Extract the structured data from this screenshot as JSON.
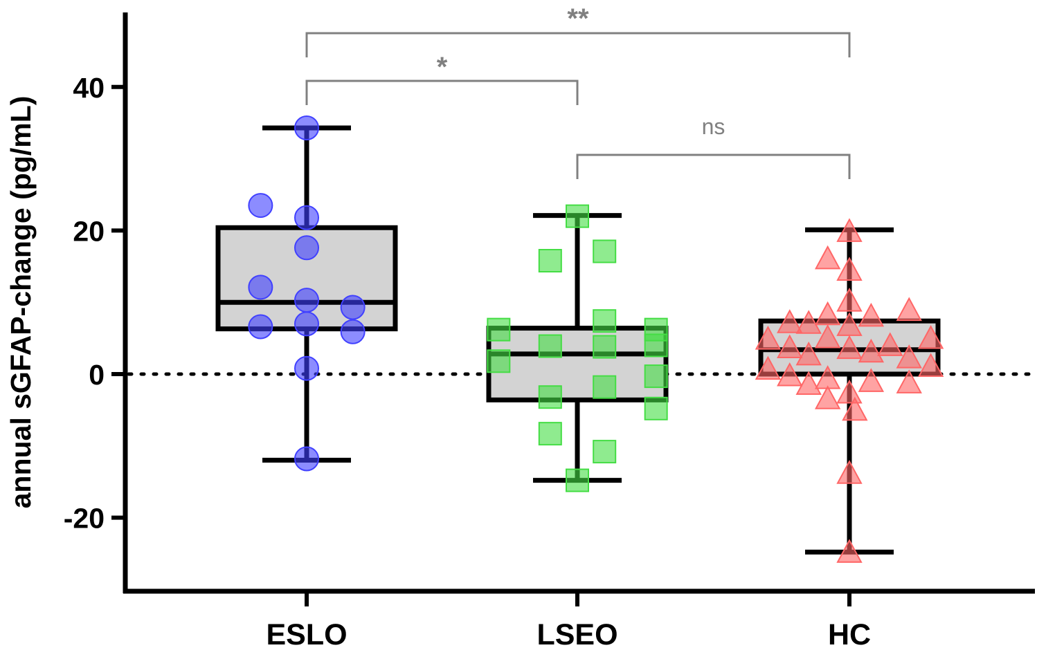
{
  "chart_data": {
    "type": "box",
    "ylabel": "annual sGFAP-change (pg/mL)",
    "xlabel": "",
    "ylim": [
      -30,
      50
    ],
    "yticks": [
      -20,
      0,
      20,
      40
    ],
    "ytick_labels": [
      "-20",
      "0",
      "20",
      "40"
    ],
    "categories": [
      "ESLO",
      "LSEO",
      "HC"
    ],
    "reference_line": 0,
    "groups": [
      {
        "name": "ESLO",
        "marker": "circle",
        "color": "#4040ff",
        "min": -12,
        "q1": 6.3,
        "median": 10,
        "q3": 20.4,
        "max": 34.3,
        "points": [
          {
            "x": 0,
            "y": 34.3
          },
          {
            "x": -0.17,
            "y": 23.5
          },
          {
            "x": 0,
            "y": 21.8
          },
          {
            "x": 0,
            "y": 17.6
          },
          {
            "x": -0.17,
            "y": 12.1
          },
          {
            "x": 0,
            "y": 10.3
          },
          {
            "x": 0.17,
            "y": 9.3
          },
          {
            "x": 0,
            "y": 7.0
          },
          {
            "x": -0.17,
            "y": 6.6
          },
          {
            "x": 0.17,
            "y": 5.9
          },
          {
            "x": 0,
            "y": 0.8
          },
          {
            "x": 0,
            "y": -11.8
          }
        ]
      },
      {
        "name": "LSEO",
        "marker": "square",
        "color": "#44dd44",
        "min": -14.8,
        "q1": -3.6,
        "median": 2.8,
        "q3": 6.4,
        "max": 22.1,
        "points": [
          {
            "x": 0,
            "y": 22.0
          },
          {
            "x": 0.1,
            "y": 17.1
          },
          {
            "x": -0.1,
            "y": 15.8
          },
          {
            "x": 0.1,
            "y": 7.4
          },
          {
            "x": -0.29,
            "y": 6.2
          },
          {
            "x": 0.29,
            "y": 6.2
          },
          {
            "x": 0.29,
            "y": 4.0
          },
          {
            "x": -0.1,
            "y": 3.9
          },
          {
            "x": 0.1,
            "y": 3.8
          },
          {
            "x": -0.29,
            "y": 1.8
          },
          {
            "x": 0.29,
            "y": -0.3
          },
          {
            "x": 0.1,
            "y": -1.8
          },
          {
            "x": -0.1,
            "y": -3.2
          },
          {
            "x": 0.29,
            "y": -4.8
          },
          {
            "x": -0.1,
            "y": -8.3
          },
          {
            "x": 0.1,
            "y": -10.8
          },
          {
            "x": 0,
            "y": -14.8
          }
        ]
      },
      {
        "name": "HC",
        "marker": "triangle",
        "color": "#ff6666",
        "min": -24.8,
        "q1": 0,
        "median": 3.4,
        "q3": 7.4,
        "max": 20.1,
        "points": [
          {
            "x": 0,
            "y": 19.9
          },
          {
            "x": -0.08,
            "y": 16.1
          },
          {
            "x": 0,
            "y": 14.5
          },
          {
            "x": 0,
            "y": 10.2
          },
          {
            "x": 0.22,
            "y": 8.9
          },
          {
            "x": -0.08,
            "y": 8.3
          },
          {
            "x": 0.08,
            "y": 8.1
          },
          {
            "x": -0.22,
            "y": 7.2
          },
          {
            "x": -0.15,
            "y": 7.1
          },
          {
            "x": 0,
            "y": 6.8
          },
          {
            "x": -0.3,
            "y": 4.9
          },
          {
            "x": 0.3,
            "y": 5.0
          },
          {
            "x": -0.08,
            "y": 5.1
          },
          {
            "x": 0.15,
            "y": 4.0
          },
          {
            "x": -0.22,
            "y": 3.7
          },
          {
            "x": 0,
            "y": 3.6
          },
          {
            "x": 0.08,
            "y": 3.1
          },
          {
            "x": -0.15,
            "y": 2.7
          },
          {
            "x": 0.22,
            "y": 2.3
          },
          {
            "x": 0.3,
            "y": 1.1
          },
          {
            "x": -0.3,
            "y": 0.7
          },
          {
            "x": -0.22,
            "y": -0.2
          },
          {
            "x": -0.08,
            "y": -0.6
          },
          {
            "x": 0.08,
            "y": -1.0
          },
          {
            "x": 0.22,
            "y": -1.2
          },
          {
            "x": -0.15,
            "y": -1.4
          },
          {
            "x": 0,
            "y": -2.6
          },
          {
            "x": -0.08,
            "y": -3.4
          },
          {
            "x": 0.02,
            "y": -5.0
          },
          {
            "x": 0,
            "y": -13.8
          },
          {
            "x": 0,
            "y": -24.8
          }
        ]
      }
    ],
    "significance": [
      {
        "from": "ESLO",
        "to": "HC",
        "label": "**"
      },
      {
        "from": "ESLO",
        "to": "LSEO",
        "label": "*"
      },
      {
        "from": "LSEO",
        "to": "HC",
        "label": "ns"
      }
    ],
    "colors": {
      "box_fill": "#d3d3d3",
      "axis": "#000000",
      "bracket": "#808080"
    }
  }
}
